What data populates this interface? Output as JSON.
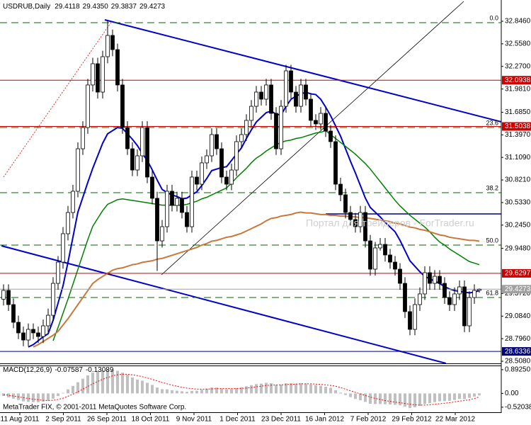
{
  "chart_data": {
    "type": "candlestick",
    "title": "USDRUB,Daily",
    "title_values": [
      "29.4118",
      "29.4350",
      "29.3837",
      "29.4273"
    ],
    "watermark": "Портал для трейдеров - ForTrader.ru",
    "copyright": "MetaTrader FIX, © 2001-2011 MetaQuotes Software Corp.",
    "colors": {
      "up": "#ffffff",
      "down": "#000000",
      "wick": "#000000"
    },
    "ylim": [
      28.481,
      33.117
    ],
    "yticks": [
      {
        "value": 32.846,
        "label": "32.8460"
      },
      {
        "value": 32.558,
        "label": "32.5580"
      },
      {
        "value": 32.27,
        "label": "32.2700"
      },
      {
        "value": 31.981,
        "label": "31.9810"
      },
      {
        "value": 31.685,
        "label": "31.6850"
      },
      {
        "value": 31.397,
        "label": "31.3970"
      },
      {
        "value": 31.109,
        "label": "31.1090"
      },
      {
        "value": 30.821,
        "label": "30.8210"
      },
      {
        "value": 30.533,
        "label": "30.5330"
      },
      {
        "value": 30.245,
        "label": "30.2450"
      },
      {
        "value": 29.948,
        "label": "29.9480"
      },
      {
        "value": 29.372,
        "label": "29.3720"
      },
      {
        "value": 29.084,
        "label": "29.0840"
      },
      {
        "value": 28.796,
        "label": "28.7960"
      },
      {
        "value": 28.508,
        "label": "28.5080"
      }
    ],
    "date_labels": [
      "11 Aug 2011",
      "2 Sep 2011",
      "26 Sep 2011",
      "18 Oct 2011",
      "9 Nov 2011",
      "1 Dec 2011",
      "23 Dec 2011",
      "16 Jan 2012",
      "7 Feb 2012",
      "29 Feb 2012",
      "22 Mar 2012"
    ],
    "candles": [
      [
        29.3,
        29.49,
        29.22,
        29.412
      ],
      [
        29.412,
        29.49,
        29.15,
        29.231
      ],
      [
        29.231,
        29.31,
        28.93,
        29.005
      ],
      [
        29.005,
        29.09,
        28.79,
        28.87
      ],
      [
        28.87,
        28.95,
        28.7,
        28.779
      ],
      [
        28.779,
        28.99,
        28.7,
        28.915
      ],
      [
        28.915,
        28.99,
        28.79,
        28.87
      ],
      [
        28.87,
        28.95,
        28.74,
        28.824
      ],
      [
        28.824,
        29.04,
        28.74,
        28.96
      ],
      [
        28.96,
        29.18,
        28.88,
        29.095
      ],
      [
        29.095,
        29.58,
        29.02,
        29.502
      ],
      [
        29.502,
        29.85,
        29.42,
        29.773
      ],
      [
        29.773,
        30.22,
        29.69,
        30.135
      ],
      [
        30.135,
        30.49,
        30.05,
        30.406
      ],
      [
        30.406,
        30.76,
        30.33,
        30.677
      ],
      [
        30.677,
        31.3,
        30.6,
        31.219
      ],
      [
        31.219,
        31.57,
        31.14,
        31.49
      ],
      [
        31.49,
        32.11,
        31.41,
        32.033
      ],
      [
        32.033,
        32.38,
        31.95,
        32.304
      ],
      [
        32.304,
        32.38,
        31.86,
        31.942
      ],
      [
        31.942,
        32.47,
        31.86,
        32.394
      ],
      [
        32.394,
        32.85,
        32.31,
        32.665
      ],
      [
        32.665,
        32.74,
        32.4,
        32.484
      ],
      [
        32.484,
        32.56,
        31.95,
        32.033
      ],
      [
        32.033,
        32.11,
        31.41,
        31.49
      ],
      [
        31.49,
        31.57,
        31.14,
        31.219
      ],
      [
        31.219,
        31.3,
        30.87,
        30.948
      ],
      [
        30.948,
        31.21,
        30.87,
        31.129
      ],
      [
        31.129,
        31.57,
        31.05,
        31.49
      ],
      [
        31.49,
        31.57,
        30.78,
        30.858
      ],
      [
        30.858,
        30.94,
        30.51,
        30.587
      ],
      [
        30.587,
        30.67,
        29.66,
        30.044
      ],
      [
        30.044,
        30.31,
        29.96,
        30.225
      ],
      [
        30.225,
        30.76,
        30.15,
        30.677
      ],
      [
        30.677,
        30.76,
        30.42,
        30.496
      ],
      [
        30.496,
        30.67,
        30.42,
        30.587
      ],
      [
        30.587,
        30.67,
        30.33,
        30.406
      ],
      [
        30.406,
        30.49,
        30.15,
        30.225
      ],
      [
        30.225,
        30.94,
        30.15,
        30.858
      ],
      [
        30.858,
        30.94,
        30.69,
        30.767
      ],
      [
        30.767,
        31.12,
        30.69,
        31.039
      ],
      [
        31.039,
        31.21,
        30.96,
        31.129
      ],
      [
        31.129,
        31.48,
        31.05,
        31.4
      ],
      [
        31.4,
        31.48,
        31.14,
        31.219
      ],
      [
        31.219,
        31.3,
        30.78,
        30.858
      ],
      [
        30.858,
        30.94,
        30.69,
        30.767
      ],
      [
        30.767,
        31.03,
        30.69,
        30.948
      ],
      [
        30.948,
        31.39,
        30.87,
        31.31
      ],
      [
        31.31,
        31.48,
        31.23,
        31.4
      ],
      [
        31.4,
        31.66,
        31.32,
        31.581
      ],
      [
        31.581,
        31.84,
        31.5,
        31.761
      ],
      [
        31.761,
        32.02,
        31.68,
        31.942
      ],
      [
        31.942,
        32.02,
        31.77,
        31.852
      ],
      [
        31.852,
        32.11,
        31.77,
        32.033
      ],
      [
        32.033,
        32.11,
        31.59,
        31.671
      ],
      [
        31.671,
        31.75,
        31.14,
        31.219
      ],
      [
        31.219,
        31.84,
        31.14,
        31.761
      ],
      [
        31.761,
        32.29,
        31.68,
        32.213
      ],
      [
        32.213,
        32.29,
        31.86,
        31.942
      ],
      [
        31.942,
        32.02,
        31.68,
        31.761
      ],
      [
        31.761,
        32.11,
        31.68,
        32.033
      ],
      [
        32.033,
        32.11,
        31.77,
        31.852
      ],
      [
        31.852,
        31.93,
        31.5,
        31.581
      ],
      [
        31.581,
        31.66,
        31.46,
        31.536
      ],
      [
        31.536,
        31.75,
        31.46,
        31.671
      ],
      [
        31.671,
        31.75,
        31.37,
        31.445
      ],
      [
        31.445,
        31.52,
        31.23,
        31.31
      ],
      [
        31.31,
        31.39,
        30.69,
        30.767
      ],
      [
        30.767,
        30.85,
        30.55,
        30.632
      ],
      [
        30.632,
        30.71,
        30.33,
        30.406
      ],
      [
        30.406,
        30.49,
        30.24,
        30.316
      ],
      [
        30.316,
        30.4,
        30.15,
        30.225
      ],
      [
        30.225,
        30.49,
        30.15,
        30.406
      ],
      [
        30.406,
        30.49,
        29.96,
        30.044
      ],
      [
        30.044,
        30.12,
        29.6,
        29.683
      ],
      [
        29.683,
        30.03,
        29.6,
        29.954
      ],
      [
        29.954,
        30.08,
        29.92,
        29.999
      ],
      [
        29.999,
        30.08,
        29.78,
        29.864
      ],
      [
        29.864,
        29.94,
        29.69,
        29.773
      ],
      [
        29.773,
        29.85,
        29.6,
        29.683
      ],
      [
        29.683,
        29.76,
        29.42,
        29.502
      ],
      [
        29.502,
        29.58,
        29.06,
        29.141
      ],
      [
        29.141,
        29.22,
        28.84,
        28.915
      ],
      [
        28.915,
        29.31,
        28.84,
        29.231
      ],
      [
        29.231,
        29.45,
        29.15,
        29.367
      ],
      [
        29.367,
        29.72,
        29.29,
        29.638
      ],
      [
        29.638,
        29.72,
        29.42,
        29.502
      ],
      [
        29.502,
        29.67,
        29.42,
        29.592
      ],
      [
        29.592,
        29.67,
        29.42,
        29.502
      ],
      [
        29.502,
        29.58,
        29.24,
        29.321
      ],
      [
        29.321,
        29.4,
        29.15,
        29.231
      ],
      [
        29.231,
        29.45,
        29.15,
        29.367
      ],
      [
        29.367,
        29.54,
        29.29,
        29.457
      ],
      [
        29.457,
        29.54,
        28.88,
        28.96
      ],
      [
        28.96,
        29.4,
        28.88,
        29.321
      ],
      [
        29.321,
        29.49,
        29.24,
        29.412
      ],
      [
        29.4118,
        29.435,
        29.3837,
        29.4273
      ]
    ],
    "series": [
      {
        "color": "#0000cc",
        "width": 2,
        "values": [
          null,
          null,
          null,
          null,
          null,
          28.69,
          28.72,
          28.77,
          28.82,
          28.86,
          29.03,
          29.25,
          29.47,
          29.77,
          30.09,
          30.41,
          30.6,
          30.79,
          30.97,
          31.13,
          31.29,
          31.41,
          31.45,
          31.49,
          31.48,
          31.41,
          31.34,
          31.26,
          31.16,
          31.07,
          30.95,
          30.82,
          30.7,
          30.66,
          30.63,
          30.61,
          30.58,
          30.59,
          30.63,
          30.67,
          30.75,
          30.84,
          30.94,
          30.96,
          30.98,
          30.99,
          31.07,
          31.15,
          31.23,
          31.35,
          31.46,
          31.56,
          31.62,
          31.68,
          31.7,
          31.66,
          31.65,
          31.76,
          31.85,
          31.89,
          31.92,
          31.94,
          31.92,
          31.91,
          31.85,
          31.75,
          31.64,
          31.51,
          31.38,
          31.22,
          31.06,
          30.91,
          30.75,
          30.59,
          30.47,
          30.41,
          30.35,
          30.28,
          30.22,
          30.16,
          30.05,
          29.92,
          29.79,
          29.72,
          29.65,
          29.59,
          29.56,
          29.53,
          29.5,
          29.46,
          29.43,
          29.41,
          29.4,
          29.39,
          29.38,
          29.39,
          29.41
        ]
      },
      {
        "color": "#008000",
        "width": 1.5,
        "values": [
          null,
          null,
          null,
          null,
          null,
          null,
          null,
          null,
          null,
          null,
          28.77,
          28.94,
          29.12,
          29.3,
          29.49,
          29.68,
          29.87,
          30.06,
          30.23,
          30.33,
          30.43,
          30.51,
          30.54,
          30.57,
          30.58,
          30.57,
          30.56,
          30.55,
          30.54,
          30.53,
          30.52,
          30.51,
          30.5,
          30.5,
          30.5,
          30.5,
          30.5,
          30.51,
          30.53,
          30.55,
          30.58,
          30.6,
          30.63,
          30.66,
          30.69,
          30.72,
          30.78,
          30.85,
          30.91,
          30.97,
          31.04,
          31.1,
          31.14,
          31.19,
          31.23,
          31.27,
          31.3,
          31.32,
          31.33,
          31.35,
          31.36,
          31.38,
          31.4,
          31.42,
          31.43,
          31.45,
          31.4,
          31.35,
          31.3,
          31.25,
          31.2,
          31.15,
          31.09,
          31.03,
          30.96,
          30.88,
          30.8,
          30.72,
          30.64,
          30.56,
          30.49,
          30.43,
          30.37,
          30.32,
          30.27,
          30.22,
          30.16,
          30.09,
          30.03,
          29.99,
          29.94,
          29.9,
          29.86,
          29.82,
          29.78,
          29.76,
          29.74
        ]
      },
      {
        "color": "#c8783c",
        "width": 2,
        "values": [
          null,
          null,
          null,
          null,
          null,
          null,
          28.69,
          28.72,
          28.76,
          28.8,
          28.84,
          28.89,
          28.97,
          29.05,
          29.14,
          29.23,
          29.32,
          29.41,
          29.5,
          29.55,
          29.59,
          29.63,
          29.67,
          29.69,
          29.7,
          29.72,
          29.74,
          29.75,
          29.77,
          29.78,
          29.79,
          29.81,
          29.82,
          29.84,
          29.86,
          29.88,
          29.9,
          29.92,
          29.94,
          29.96,
          29.99,
          30.01,
          30.04,
          30.05,
          30.07,
          30.09,
          30.1,
          30.12,
          30.14,
          30.17,
          30.2,
          30.23,
          30.26,
          30.3,
          30.33,
          30.34,
          30.36,
          30.37,
          30.38,
          30.4,
          30.41,
          30.4,
          30.4,
          30.39,
          30.38,
          30.38,
          30.37,
          30.37,
          30.36,
          30.36,
          30.35,
          30.35,
          30.34,
          30.34,
          30.33,
          30.32,
          30.31,
          30.3,
          30.29,
          30.27,
          30.26,
          30.24,
          30.22,
          30.21,
          30.19,
          30.18,
          30.16,
          30.14,
          30.12,
          30.11,
          30.09,
          30.08,
          30.07,
          30.06,
          30.05,
          30.05,
          30.04
        ]
      }
    ],
    "hlines": [
      {
        "value": 32.0938,
        "color": "#cc0000"
      },
      {
        "value": 31.5038,
        "color": "#cc0000"
      },
      {
        "value": 29.6297,
        "color": "#cc0000"
      },
      {
        "value": 29.4273,
        "color": "#a0a0a0"
      },
      {
        "value": 28.6336,
        "color": "#000080"
      }
    ],
    "fib": {
      "color": "#006400",
      "levels": [
        {
          "price": 32.828,
          "label": "0.0"
        },
        {
          "price": 31.49,
          "label": "23.6"
        },
        {
          "price": 30.659,
          "label": "38.2"
        },
        {
          "price": 29.99,
          "label": "50.0"
        },
        {
          "price": 29.321,
          "label": "61.8"
        }
      ]
    },
    "macd": {
      "title": "MACD(12,26,9)",
      "hist_color": "#c0c0c0",
      "signal_color": "#ff0000",
      "ylim": [
        -0.71,
        1.05
      ],
      "yticks": [
        {
          "value": 0.8925,
          "label": "0.89250"
        },
        {
          "value": 0,
          "label": "0.00"
        },
        {
          "value": -0.52038,
          "label": "-0.52038"
        }
      ],
      "values": [
        -0.1,
        -0.15,
        -0.2,
        -0.25,
        -0.3,
        -0.32,
        -0.33,
        -0.33,
        -0.31,
        -0.28,
        -0.2,
        -0.1,
        0.02,
        0.15,
        0.28,
        0.42,
        0.55,
        0.68,
        0.78,
        0.82,
        0.86,
        0.9,
        0.89,
        0.85,
        0.78,
        0.7,
        0.6,
        0.52,
        0.48,
        0.4,
        0.32,
        0.22,
        0.16,
        0.15,
        0.12,
        0.1,
        0.08,
        0.06,
        0.09,
        0.1,
        0.14,
        0.18,
        0.22,
        0.22,
        0.18,
        0.15,
        0.16,
        0.2,
        0.23,
        0.27,
        0.31,
        0.35,
        0.37,
        0.4,
        0.38,
        0.32,
        0.33,
        0.38,
        0.38,
        0.37,
        0.38,
        0.37,
        0.34,
        0.31,
        0.29,
        0.25,
        0.21,
        0.12,
        0.03,
        -0.06,
        -0.14,
        -0.21,
        -0.26,
        -0.32,
        -0.39,
        -0.4,
        -0.4,
        -0.41,
        -0.42,
        -0.43,
        -0.45,
        -0.5,
        -0.55,
        -0.52,
        -0.47,
        -0.4,
        -0.37,
        -0.33,
        -0.3,
        -0.29,
        -0.28,
        -0.25,
        -0.21,
        -0.22,
        -0.17,
        -0.12,
        -0.07587
      ],
      "signal": [
        -0.05,
        -0.07,
        -0.1,
        -0.13,
        -0.16,
        -0.19,
        -0.22,
        -0.24,
        -0.26,
        -0.27,
        -0.26,
        -0.23,
        -0.18,
        -0.11,
        -0.03,
        0.06,
        0.16,
        0.26,
        0.36,
        0.45,
        0.53,
        0.6,
        0.66,
        0.7,
        0.72,
        0.72,
        0.7,
        0.67,
        0.63,
        0.58,
        0.53,
        0.47,
        0.41,
        0.36,
        0.31,
        0.27,
        0.23,
        0.2,
        0.18,
        0.16,
        0.16,
        0.16,
        0.17,
        0.18,
        0.18,
        0.18,
        0.18,
        0.18,
        0.19,
        0.2,
        0.22,
        0.25,
        0.27,
        0.3,
        0.31,
        0.32,
        0.32,
        0.33,
        0.34,
        0.35,
        0.36,
        0.36,
        0.36,
        0.35,
        0.34,
        0.32,
        0.3,
        0.27,
        0.22,
        0.16,
        0.1,
        0.04,
        -0.02,
        -0.08,
        -0.14,
        -0.19,
        -0.23,
        -0.27,
        -0.3,
        -0.33,
        -0.35,
        -0.38,
        -0.41,
        -0.43,
        -0.44,
        -0.44,
        -0.43,
        -0.41,
        -0.39,
        -0.37,
        -0.35,
        -0.32,
        -0.29,
        -0.27,
        -0.24,
        -0.19,
        -0.13089
      ]
    }
  }
}
